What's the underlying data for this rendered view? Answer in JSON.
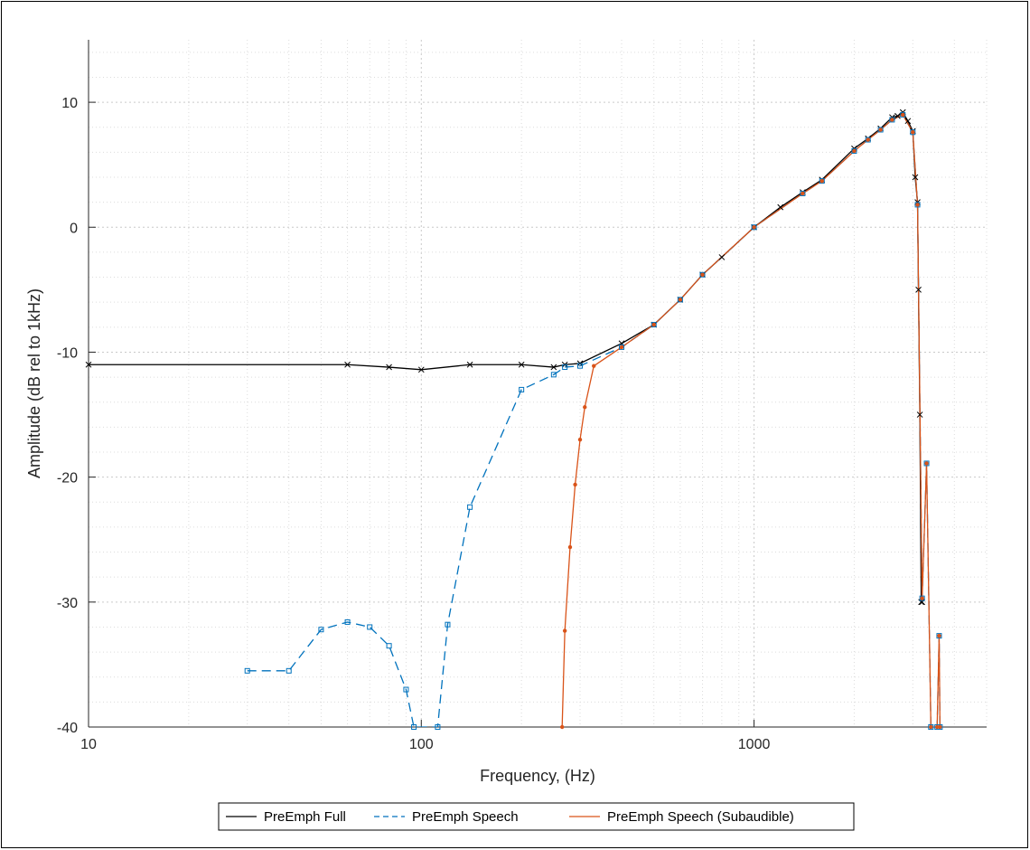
{
  "chart_data": {
    "type": "line",
    "xscale": "log",
    "xlim": [
      10,
      5000
    ],
    "ylim": [
      -40,
      15
    ],
    "xlabel": "Frequency, (Hz)",
    "ylabel": "Amplitude (dB rel to 1kHz)",
    "x_ticks": [
      10,
      100,
      1000
    ],
    "x_tick_labels": [
      "10",
      "100",
      "1000"
    ],
    "y_ticks": [
      -40,
      -30,
      -20,
      -10,
      0,
      10
    ],
    "y_tick_labels": [
      "-40",
      "-30",
      "-20",
      "-10",
      "0",
      "10"
    ],
    "grid": true,
    "minor_grid": true,
    "legend_placement": "bottom-center-outside",
    "series": [
      {
        "name": "PreEmph Full",
        "color": "#000000",
        "dash": "solid",
        "marker": "x",
        "points": [
          [
            10,
            -11
          ],
          [
            60,
            -11
          ],
          [
            80,
            -11.2
          ],
          [
            100,
            -11.4
          ],
          [
            140,
            -11
          ],
          [
            200,
            -11
          ],
          [
            250,
            -11.2
          ],
          [
            270,
            -11
          ],
          [
            300,
            -10.9
          ],
          [
            400,
            -9.3
          ],
          [
            500,
            -7.8
          ],
          [
            600,
            -5.8
          ],
          [
            700,
            -3.8
          ],
          [
            800,
            -2.4
          ],
          [
            1000,
            0
          ],
          [
            1200,
            1.6
          ],
          [
            1400,
            2.8
          ],
          [
            1600,
            3.8
          ],
          [
            2000,
            6.3
          ],
          [
            2200,
            7.1
          ],
          [
            2400,
            7.9
          ],
          [
            2600,
            8.8
          ],
          [
            2700,
            8.9
          ],
          [
            2800,
            9.2
          ],
          [
            2900,
            8.5
          ],
          [
            3000,
            7.7
          ],
          [
            3050,
            4.0
          ],
          [
            3100,
            2.0
          ],
          [
            3120,
            -5.0
          ],
          [
            3150,
            -15.0
          ],
          [
            3180,
            -30.0
          ],
          [
            3200,
            -30.0
          ]
        ]
      },
      {
        "name": "PreEmph Speech",
        "color": "#0072BD",
        "dash": "dashed",
        "marker": "square",
        "points": [
          [
            30,
            -35.5
          ],
          [
            40,
            -35.5
          ],
          [
            50,
            -32.2
          ],
          [
            60,
            -31.6
          ],
          [
            70,
            -32.0
          ],
          [
            80,
            -33.5
          ],
          [
            90,
            -37.0
          ],
          [
            95,
            -40.0
          ],
          [
            112,
            -40.0
          ],
          [
            120,
            -31.8
          ],
          [
            140,
            -22.4
          ],
          [
            200,
            -13.0
          ],
          [
            250,
            -11.8
          ],
          [
            270,
            -11.2
          ],
          [
            300,
            -11.1
          ],
          [
            400,
            -9.6
          ],
          [
            500,
            -7.8
          ],
          [
            600,
            -5.8
          ],
          [
            700,
            -3.8
          ],
          [
            1000,
            0
          ],
          [
            1400,
            2.7
          ],
          [
            1600,
            3.7
          ],
          [
            2000,
            6.1
          ],
          [
            2200,
            7.0
          ],
          [
            2400,
            7.8
          ],
          [
            2600,
            8.6
          ],
          [
            2800,
            9.0
          ],
          [
            3000,
            7.6
          ],
          [
            3100,
            1.8
          ],
          [
            3200,
            -29.7
          ],
          [
            3300,
            -18.9
          ],
          [
            3400,
            -40.0
          ],
          [
            3550,
            -40.0
          ],
          [
            3600,
            -32.7
          ],
          [
            3620,
            -40.0
          ]
        ]
      },
      {
        "name": "PreEmph Speech (Subaudible)",
        "color": "#D95319",
        "dash": "solid",
        "marker": "dot",
        "points": [
          [
            265,
            -40.0
          ],
          [
            270,
            -32.3
          ],
          [
            280,
            -25.6
          ],
          [
            290,
            -20.6
          ],
          [
            300,
            -17.0
          ],
          [
            310,
            -14.4
          ],
          [
            330,
            -11.1
          ],
          [
            400,
            -9.6
          ],
          [
            500,
            -7.8
          ],
          [
            600,
            -5.8
          ],
          [
            700,
            -3.8
          ],
          [
            1000,
            0
          ],
          [
            1400,
            2.7
          ],
          [
            1600,
            3.7
          ],
          [
            2000,
            6.1
          ],
          [
            2200,
            7.0
          ],
          [
            2400,
            7.8
          ],
          [
            2600,
            8.6
          ],
          [
            2800,
            9.0
          ],
          [
            3000,
            7.6
          ],
          [
            3100,
            1.8
          ],
          [
            3200,
            -29.7
          ],
          [
            3300,
            -18.9
          ],
          [
            3400,
            -40.0
          ],
          [
            3550,
            -40.0
          ],
          [
            3600,
            -32.7
          ],
          [
            3620,
            -40.0
          ]
        ]
      }
    ]
  }
}
